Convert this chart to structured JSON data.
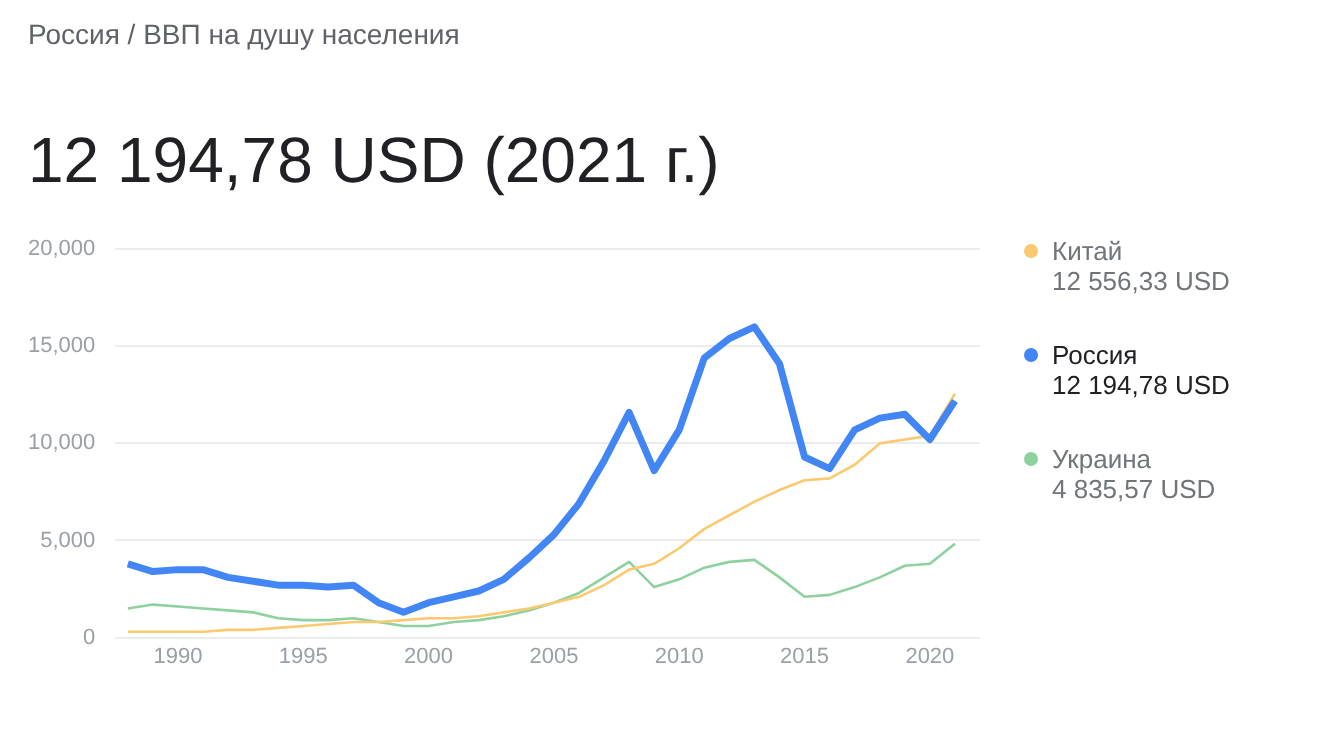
{
  "chart_data": {
    "type": "line",
    "subtitle": "Россия / ВВП на душу населения",
    "title": "12 194,78 USD (2021 г.)",
    "x": [
      1988,
      1989,
      1990,
      1991,
      1992,
      1993,
      1994,
      1995,
      1996,
      1997,
      1998,
      1999,
      2000,
      2001,
      2002,
      2003,
      2004,
      2005,
      2006,
      2007,
      2008,
      2009,
      2010,
      2011,
      2012,
      2013,
      2014,
      2015,
      2016,
      2017,
      2018,
      2019,
      2020,
      2021
    ],
    "series": [
      {
        "name": "Китай",
        "color": "#fbc96f",
        "values": [
          300,
          300,
          300,
          300,
          400,
          400,
          500,
          600,
          700,
          800,
          800,
          900,
          1000,
          1000,
          1100,
          1300,
          1500,
          1800,
          2100,
          2700,
          3500,
          3800,
          4600,
          5600,
          6300,
          7000,
          7600,
          8100,
          8200,
          8900,
          10000,
          10200,
          10400,
          12556.33
        ]
      },
      {
        "name": "Россия",
        "color": "#4285f4",
        "values": [
          3800,
          3400,
          3500,
          3500,
          3100,
          2900,
          2700,
          2700,
          2600,
          2700,
          1800,
          1300,
          1800,
          2100,
          2400,
          3000,
          4100,
          5300,
          6900,
          9100,
          11600,
          8600,
          10700,
          14400,
          15400,
          16000,
          14100,
          9300,
          8700,
          10700,
          11300,
          11500,
          10200,
          12194.78
        ]
      },
      {
        "name": "Украина",
        "color": "#8fd19e",
        "values": [
          1500,
          1700,
          1600,
          1500,
          1400,
          1300,
          1000,
          900,
          900,
          1000,
          800,
          600,
          600,
          800,
          900,
          1100,
          1400,
          1800,
          2300,
          3100,
          3900,
          2600,
          3000,
          3600,
          3900,
          4000,
          3100,
          2100,
          2200,
          2600,
          3100,
          3700,
          3800,
          4835.57
        ]
      }
    ],
    "annotations": [
      "12 556,33 USD",
      "12 194,78 USD",
      "4 835,57 USD"
    ],
    "xlim": [
      1987.5,
      2022
    ],
    "xticks": [
      1990,
      1995,
      2000,
      2005,
      2010,
      2015,
      2020
    ],
    "ylim": [
      0,
      20000
    ],
    "yticks": [
      0,
      {
        "value": 5000,
        "label": "5,000"
      },
      {
        "value": 10000,
        "label": "10,000"
      },
      {
        "value": 15000,
        "label": "15,000"
      },
      {
        "value": 20000,
        "label": "20,000"
      }
    ],
    "grid": "y",
    "legend": "right",
    "marker": "none",
    "line_style": "solid"
  }
}
